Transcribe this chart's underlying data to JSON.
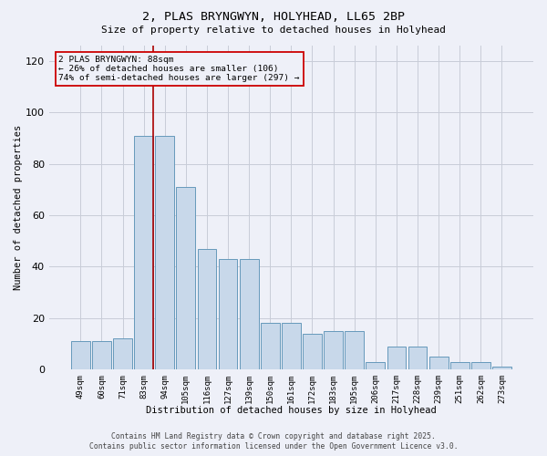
{
  "title_line1": "2, PLAS BRYNGWYN, HOLYHEAD, LL65 2BP",
  "title_line2": "Size of property relative to detached houses in Holyhead",
  "xlabel": "Distribution of detached houses by size in Holyhead",
  "ylabel": "Number of detached properties",
  "categories": [
    "49sqm",
    "60sqm",
    "71sqm",
    "83sqm",
    "94sqm",
    "105sqm",
    "116sqm",
    "127sqm",
    "139sqm",
    "150sqm",
    "161sqm",
    "172sqm",
    "183sqm",
    "195sqm",
    "206sqm",
    "217sqm",
    "228sqm",
    "239sqm",
    "251sqm",
    "262sqm",
    "273sqm"
  ],
  "values": [
    11,
    11,
    12,
    91,
    91,
    71,
    47,
    43,
    43,
    18,
    18,
    14,
    15,
    15,
    3,
    9,
    9,
    5,
    3,
    3,
    1
  ],
  "bar_color": "#c8d8ea",
  "bar_edge_color": "#6699bb",
  "grid_color": "#c8ccd8",
  "bg_color": "#eef0f8",
  "vline_color": "#aa0000",
  "vline_x": 3.45,
  "ann_text_line1": "2 PLAS BRYNGWYN: 88sqm",
  "ann_text_line2": "← 26% of detached houses are smaller (106)",
  "ann_text_line3": "74% of semi-detached houses are larger (297) →",
  "ann_box_edge_color": "#cc0000",
  "footer_line1": "Contains HM Land Registry data © Crown copyright and database right 2025.",
  "footer_line2": "Contains public sector information licensed under the Open Government Licence v3.0.",
  "ylim": [
    0,
    126
  ],
  "yticks": [
    0,
    20,
    40,
    60,
    80,
    100,
    120
  ],
  "fig_width": 6.0,
  "fig_height": 5.0,
  "dpi": 100
}
